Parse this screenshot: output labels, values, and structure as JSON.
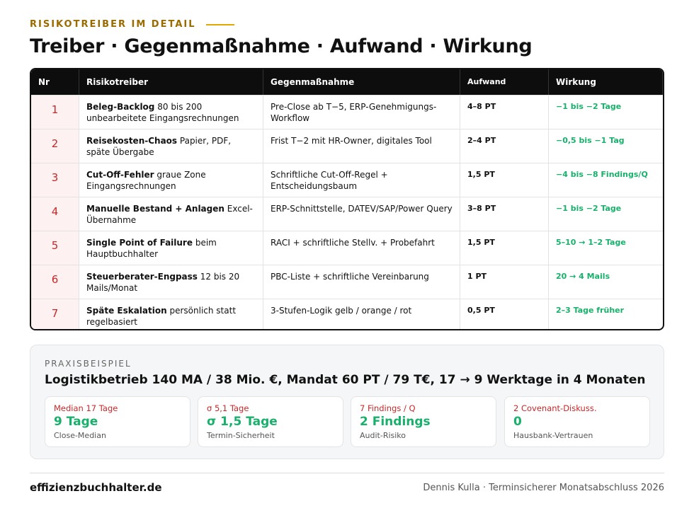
{
  "header": {
    "eyebrow": "RISIKOTREIBER IM DETAIL",
    "title": "Treiber · Gegenmaßnahme · Aufwand · Wirkung"
  },
  "table": {
    "columns": [
      "Nr",
      "Risikotreiber",
      "Gegenmaßnahme",
      "Aufwand",
      "Wirkung"
    ],
    "rows": [
      {
        "nr": 1,
        "driver_bold": "Beleg-Backlog",
        "driver_text": "80 bis 200 unbearbeitete Eingangsrechnungen",
        "measure": "Pre-Close ab T−5, ERP-Genehmigungs-Workflow",
        "effort": "4–8 PT",
        "impact": "−1 bis −2 Tage"
      },
      {
        "nr": 2,
        "driver_bold": "Reisekosten-Chaos",
        "driver_text": "Papier, PDF, späte Übergabe",
        "measure": "Frist T−2 mit HR-Owner, digitales Tool",
        "effort": "2–4 PT",
        "impact": "−0,5 bis −1 Tag"
      },
      {
        "nr": 3,
        "driver_bold": "Cut-Off-Fehler",
        "driver_text": "graue Zone Eingangsrechnungen",
        "measure": "Schriftliche Cut-Off-Regel + Entscheidungsbaum",
        "effort": "1,5 PT",
        "impact": "−4 bis −8 Findings/Q"
      },
      {
        "nr": 4,
        "driver_bold": "Manuelle Bestand + Anlagen",
        "driver_text": "Excel-Übernahme",
        "measure": "ERP-Schnittstelle, DATEV/SAP/Power Query",
        "effort": "3–8 PT",
        "impact": "−1 bis −2 Tage"
      },
      {
        "nr": 5,
        "driver_bold": "Single Point of Failure",
        "driver_text": "beim Hauptbuchhalter",
        "measure": "RACI + schriftliche Stellv. + Probefahrt",
        "effort": "1,5 PT",
        "impact": "5–10 → 1–2 Tage"
      },
      {
        "nr": 6,
        "driver_bold": "Steuerberater-Engpass",
        "driver_text": "12 bis 20 Mails/Monat",
        "measure": "PBC-Liste + schriftliche Vereinbarung",
        "effort": "1 PT",
        "impact": "20 → 4 Mails"
      },
      {
        "nr": 7,
        "driver_bold": "Späte Eskalation",
        "driver_text": "persönlich statt regelbasiert",
        "measure": "3-Stufen-Logik gelb / orange / rot",
        "effort": "0,5 PT",
        "impact": "2–3 Tage früher"
      }
    ]
  },
  "example": {
    "label": "PRAXISBEISPIEL",
    "headline": "Logistikbetrieb 140 MA / 38 Mio. €, Mandat 60 PT / 79 T€, 17 → 9 Werktage in 4 Monaten",
    "cards": [
      {
        "top": "Median 17 Tage",
        "value": "9 Tage",
        "caption": "Close-Median"
      },
      {
        "top": "σ 5,1 Tage",
        "value": "σ 1,5 Tage",
        "caption": "Termin-Sicherheit"
      },
      {
        "top": "7 Findings / Q",
        "value": "2 Findings",
        "caption": "Audit-Risiko"
      },
      {
        "top": "2 Covenant-Diskuss.",
        "value": "0",
        "caption": "Hausbank-Vertrauen"
      }
    ]
  },
  "footer": {
    "brand": "effizienzbuchhalter.de",
    "credit": "Dennis Kulla · Terminsicherer Monatsabschluss 2026"
  }
}
